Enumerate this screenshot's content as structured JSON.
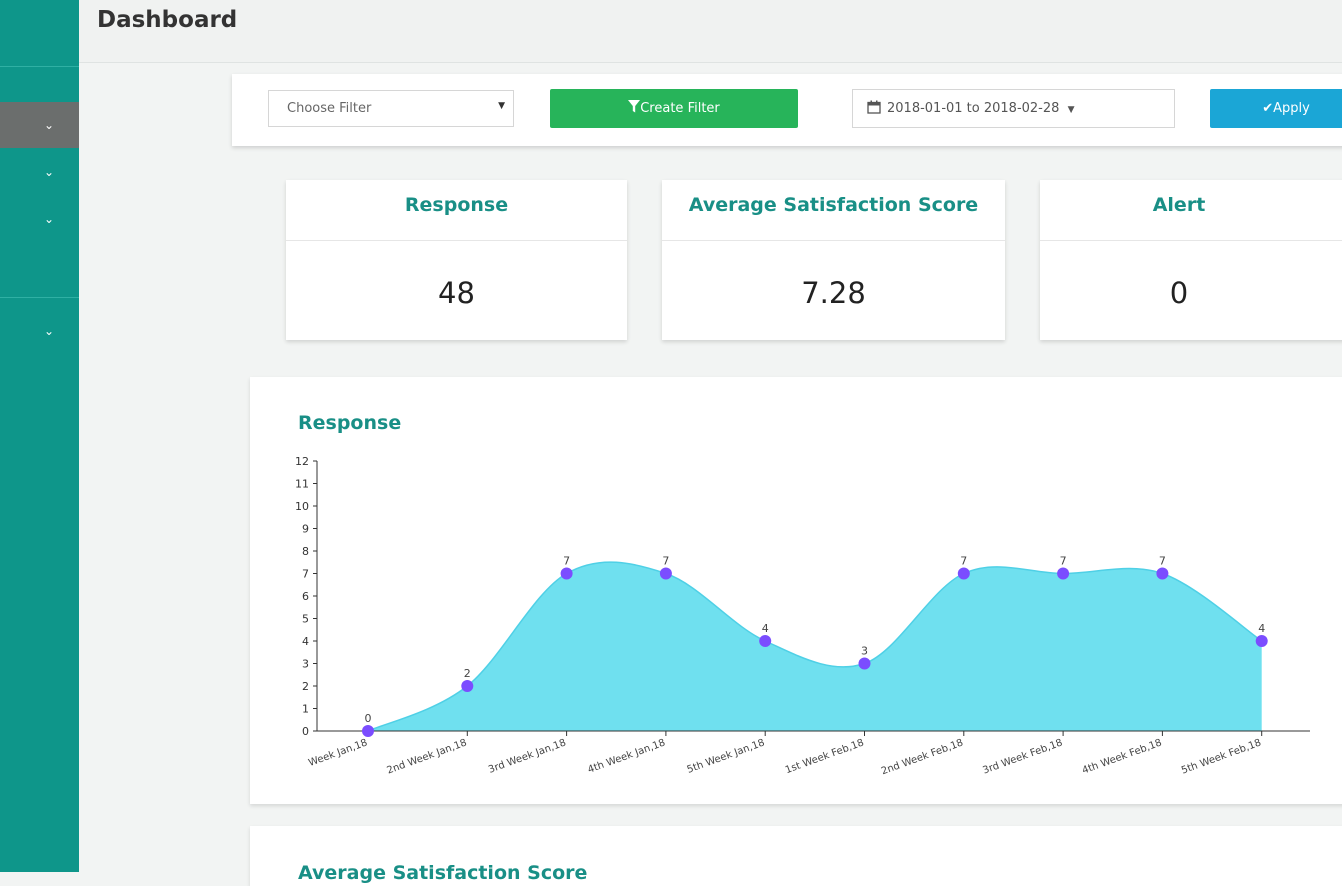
{
  "page": {
    "title": "Dashboard"
  },
  "filters": {
    "choose_filter": "Choose Filter",
    "create_filter": "Create Filter",
    "date_range": "2018-01-01 to 2018-02-28",
    "apply": "Apply"
  },
  "stats": [
    {
      "label": "Response",
      "value": "48"
    },
    {
      "label": "Average Satisfaction Score",
      "value": "7.28"
    },
    {
      "label": "Alert",
      "value": "0"
    }
  ],
  "charts": {
    "response_title": "Response",
    "next_title": "Average Satisfaction Score"
  },
  "colors": {
    "sidebar": "#0e968a",
    "accent_text": "#198f86",
    "create_button": "#27b45a",
    "apply_button": "#1ba6d6",
    "area_fill": "#6fe0ef",
    "point": "#7b4dff"
  },
  "icons": {
    "filter": "funnel-icon",
    "calendar": "calendar-icon",
    "apply": "check-icon",
    "caret": "caret-down-icon"
  },
  "chart_data": {
    "type": "area",
    "categories": [
      "Week Jan,18",
      "2nd Week Jan,18",
      "3rd Week Jan,18",
      "4th Week Jan,18",
      "5th Week Jan,18",
      "1st Week Feb,18",
      "2nd Week Feb,18",
      "3rd Week Feb,18",
      "4th Week Feb,18",
      "5th Week Feb,18"
    ],
    "values": [
      0,
      2,
      7,
      7,
      4,
      3,
      7,
      7,
      7,
      4
    ],
    "data_labels": [
      "0",
      "2",
      "7",
      "7",
      "4",
      "3",
      "7",
      "7",
      "7",
      "4"
    ],
    "ylim": [
      0,
      12
    ],
    "yticks": [
      0,
      1,
      2,
      3,
      4,
      5,
      6,
      7,
      8,
      9,
      10,
      11,
      12
    ],
    "title": "Response",
    "xlabel": "",
    "ylabel": ""
  }
}
